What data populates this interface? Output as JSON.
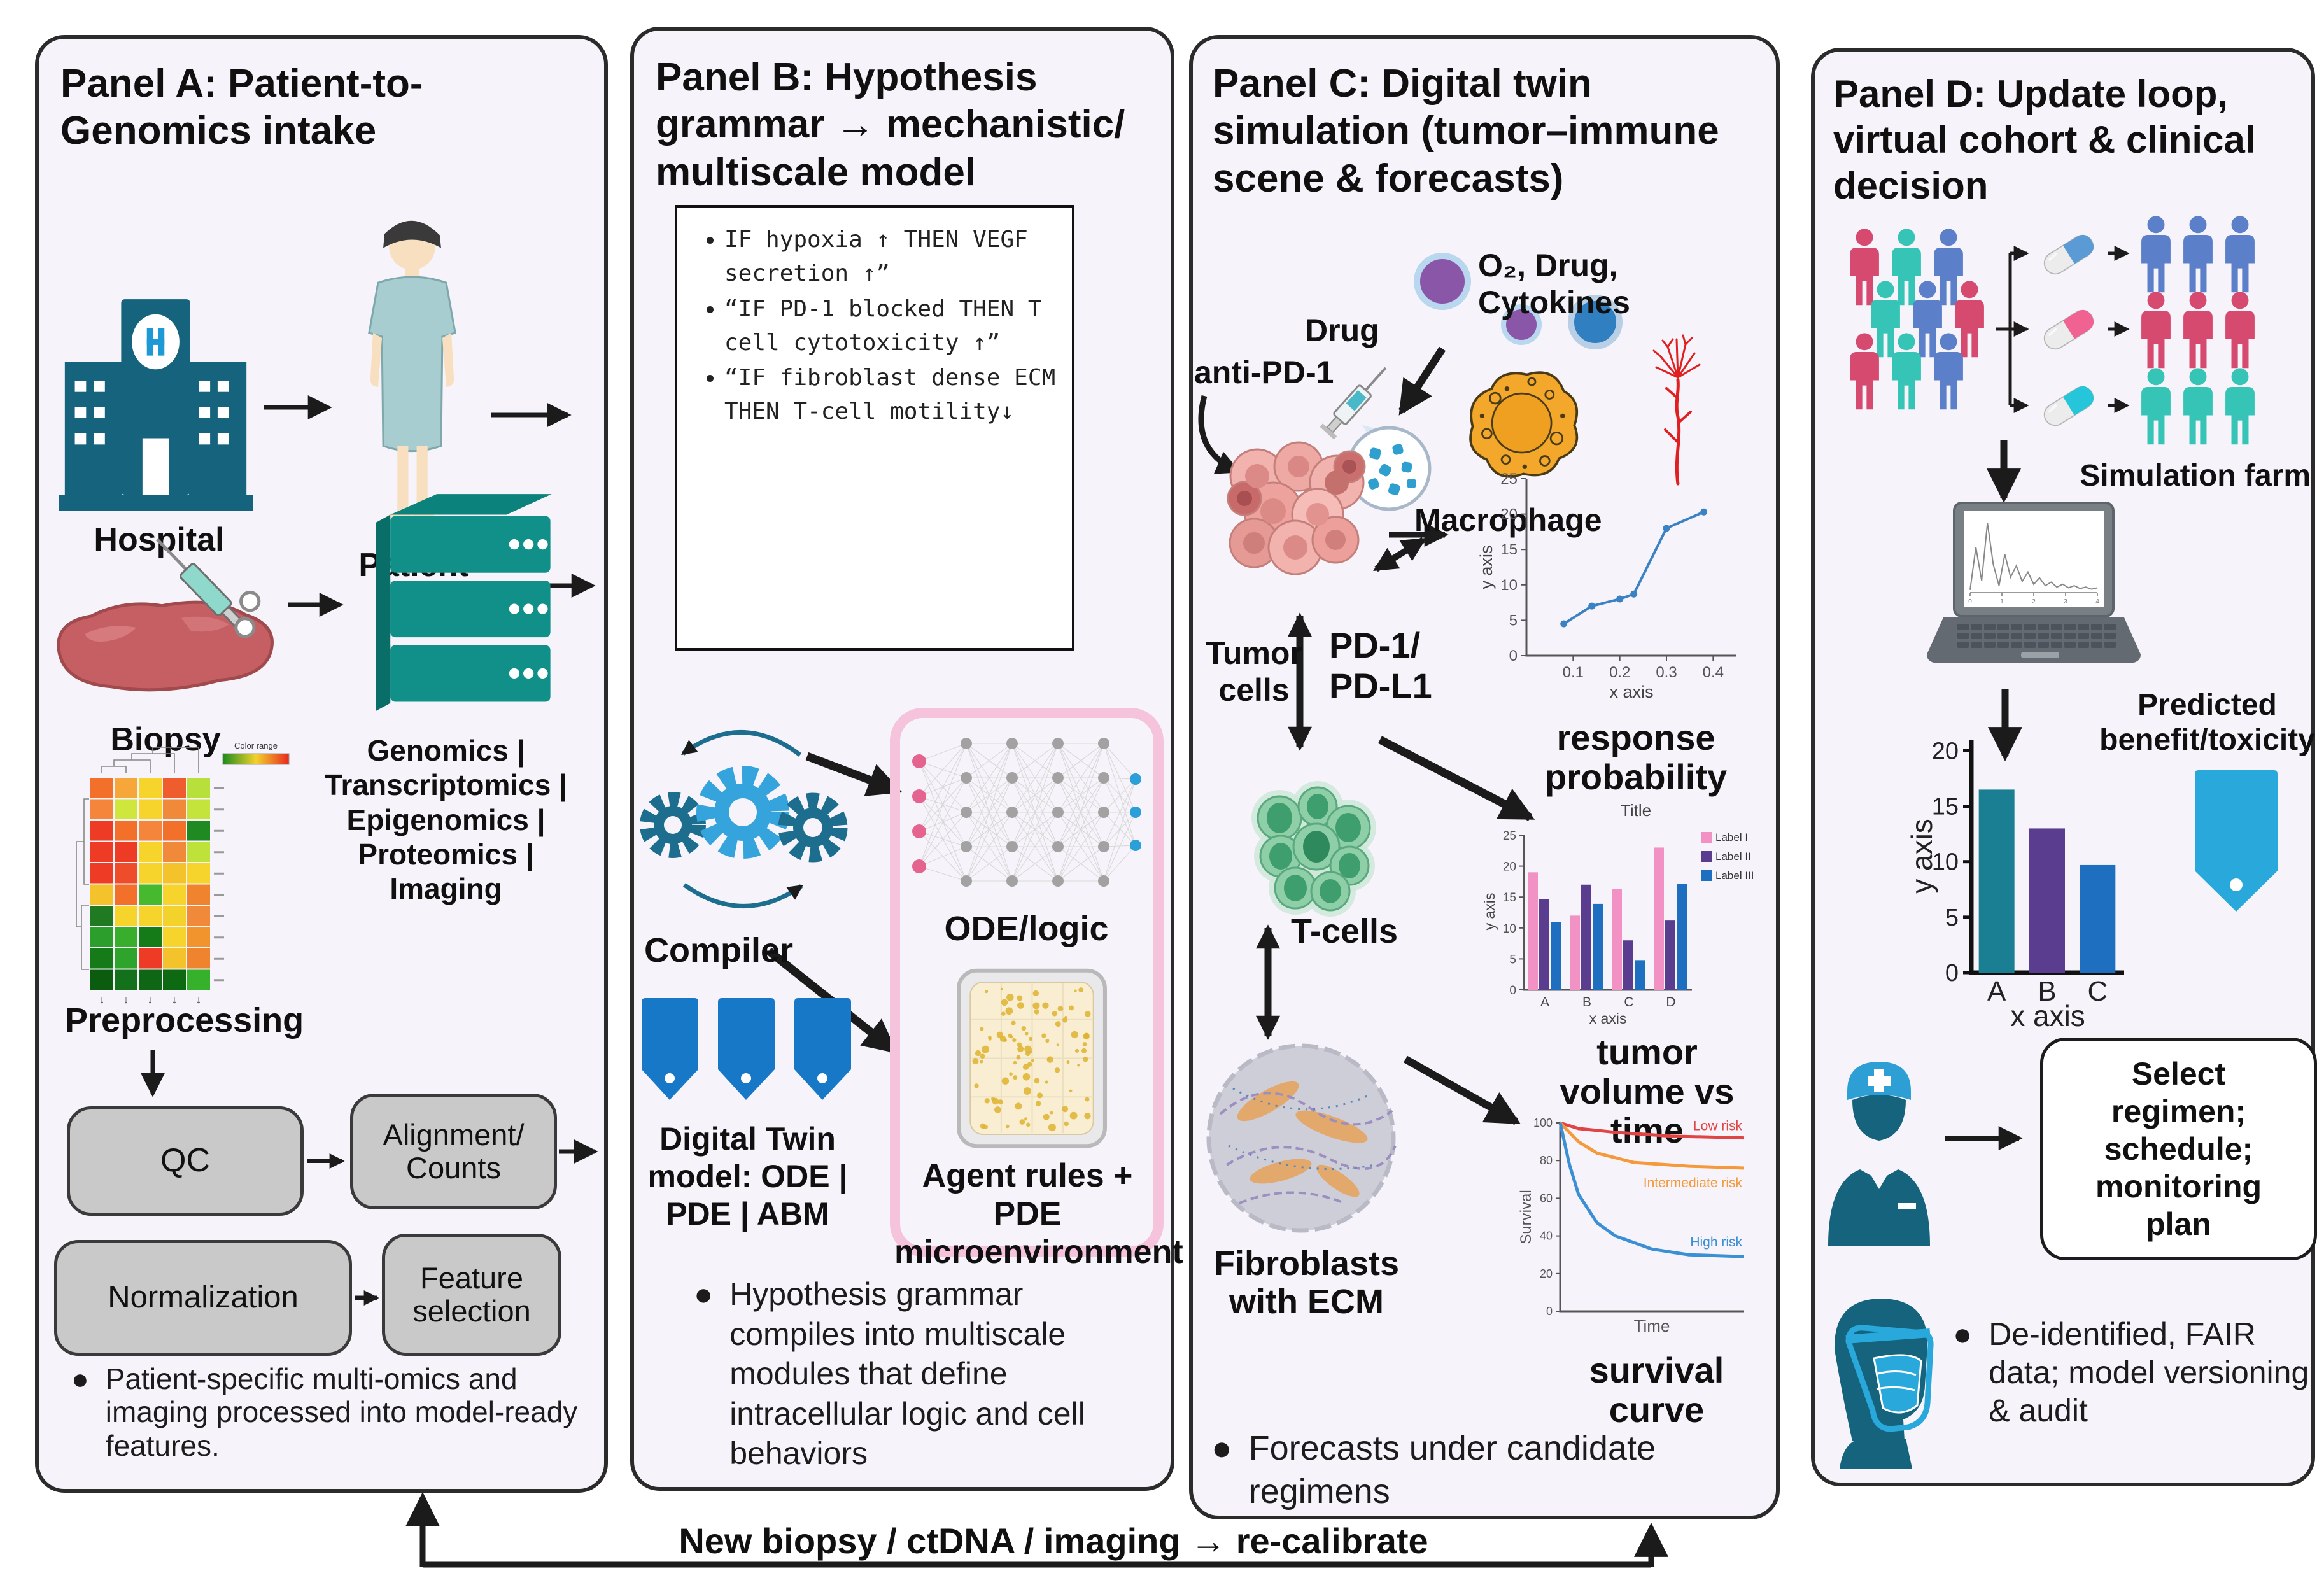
{
  "colors": {
    "panel_bg": "#f6f4fa",
    "ink": "#1b1b1b",
    "teal_dark": "#15637c",
    "teal": "#109089",
    "gray_box": "#c9c9c9",
    "gear_dark": "#1d6e8e",
    "gear_light": "#35a3dc",
    "nn_pink": "#e5638f",
    "nn_blue": "#2b9fd7",
    "pink_frame": "#f5c3dc",
    "petri_fill": "#faeed2",
    "petri_dot": "#ddb32f",
    "tag_blue": "#1878c8",
    "tumor_pink": "#efa9a5",
    "macro_orange": "#f3a82c",
    "mol_purple": "#8a56a8",
    "mol_blue": "#2f7fc1",
    "vessel_red": "#e02020",
    "tcell_green": "#8fcfa8",
    "ecm_gray": "#cdced8",
    "line_blue": "#3b82c4",
    "bar_pink": "#f291c4",
    "bar_purple": "#5b3d8f",
    "bar_blue": "#1f6fc0",
    "bar_teal": "#1a7f93",
    "low_red": "#e04545",
    "mid_orange": "#f59a3c",
    "high_blue": "#3b8fd4",
    "p_crimson": "#d64a6f",
    "p_teal": "#35c4b5",
    "p_blue": "#5b7fc9",
    "pill_blue": "#5b9bd5",
    "pill_pink": "#f06292",
    "pill_teal": "#26c6da",
    "tag_light": "#29a8dc",
    "skin": "#f7dfc0",
    "gown": "#a7cdd1",
    "tissue": "#c65f63",
    "laptop_gray": "#787f85"
  },
  "panelA": {
    "title": "Panel A: Patient-to-Genomics intake",
    "hospital": "Hospital",
    "patient": "Patient",
    "biopsy": "Biopsy",
    "server_caption": "Genomics | Transcriptomics | Epigenomics | Proteomics | Imaging",
    "preprocessing": "Preprocessing",
    "qc": "QC",
    "alignment": "Alignment/ Counts",
    "normalization": "Normalization",
    "feature": "Feature selection",
    "bullet": "Patient-specific multi-omics and imaging processed into model-ready features.",
    "heatmap": {
      "legend_label": "Color range",
      "rows": [
        [
          "#f2702a",
          "#f7a73a",
          "#f6d42c",
          "#ef5c2e",
          "#b8e03a"
        ],
        [
          "#f4853a",
          "#cfe63c",
          "#f6d42c",
          "#f08a3a",
          "#c4e43c"
        ],
        [
          "#ee3b26",
          "#f2702a",
          "#f4853a",
          "#f2702a",
          "#1f8a22"
        ],
        [
          "#ee3b26",
          "#ee3b26",
          "#f6d42c",
          "#f08a3a",
          "#bfe23a"
        ],
        [
          "#ee3b26",
          "#ee4c2a",
          "#f6d42c",
          "#f4c32c",
          "#f6d42c"
        ],
        [
          "#f4c32c",
          "#f2702a",
          "#46b92e",
          "#f6d42c",
          "#f0832e"
        ],
        [
          "#1f7a22",
          "#f6d42c",
          "#f6d42c",
          "#f4d22c",
          "#f08a3a"
        ],
        [
          "#2b9e2b",
          "#39ad2c",
          "#157a18",
          "#f6d42c",
          "#f2942e"
        ],
        [
          "#157a18",
          "#2fa42c",
          "#ee3b26",
          "#f4c32c",
          "#f0832e"
        ],
        [
          "#0c5c10",
          "#13701b",
          "#0f6614",
          "#0e6a12",
          "#35b12c"
        ]
      ]
    }
  },
  "panelB": {
    "title": "Panel B: Hypothesis grammar → mechanistic/ multiscale model",
    "rules": [
      "IF hypoxia ↑ THEN VEGF secretion ↑”",
      "“IF PD-1 blocked THEN T cell cytotoxicity ↑”",
      "“IF fibroblast dense ECM THEN T-cell motility↓"
    ],
    "compiler": "Compiler",
    "ode_logic": "ODE/logic",
    "agent": "Agent rules + PDE microenvironment",
    "twin": "Digital Twin model: ODE | PDE | ABM",
    "bullet": "Hypothesis grammar compiles into multiscale modules that define intracellular logic and cell behaviors"
  },
  "panelC": {
    "title": "Panel C: Digital twin simulation (tumor–immune scene & forecasts)",
    "molecules": "O₂, Drug, Cytokines",
    "drug": "Drug",
    "anti_pd1": "anti-PD-1",
    "macrophage": "Macrophage",
    "tumor_cells": "Tumor cells",
    "pd1": "PD-1/ PD-L1",
    "tcells": "T-cells",
    "fibroblasts": "Fibroblasts with ECM",
    "response": "response probability",
    "chart_subtitle": "Title",
    "tumor_volume": "tumor volume vs time",
    "survival": "survival curve",
    "bullet": "Forecasts under candidate regimens"
  },
  "panelD": {
    "title": "Panel D: Update loop, virtual cohort & clinical decision",
    "simulation_farm": "Simulation farm",
    "predicted": "Predicted benefit/toxicity",
    "select_box": "Select regimen; schedule; monitoring plan",
    "bullet": "De-identified, FAIR data; model versioning & audit",
    "crowd": [
      "#d64a6f",
      "#35c4b5",
      "#5b7fc9",
      "#35c4b5",
      "#5b7fc9",
      "#d64a6f",
      "#d64a6f",
      "#35c4b5",
      "#5b7fc9"
    ],
    "arms": [
      {
        "pill": "#5b9bd5",
        "people": "#5b7fc9"
      },
      {
        "pill": "#f06292",
        "people": "#d64a6f"
      },
      {
        "pill": "#26c6da",
        "people": "#35c4b5"
      }
    ]
  },
  "loop_label": "New biopsy / ctDNA / imaging → re-calibrate",
  "chart_data": [
    {
      "id": "tumor_growth",
      "type": "line",
      "x": [
        0.08,
        0.14,
        0.2,
        0.23,
        0.3,
        0.38
      ],
      "y": [
        4.5,
        7,
        8,
        8.7,
        18,
        20.3
      ],
      "xlabel": "x axis",
      "ylabel": "y axis",
      "xticks": [
        0.1,
        0.2,
        0.3,
        0.4
      ],
      "yticks": [
        0,
        5,
        10,
        15,
        20,
        25
      ],
      "xlim": [
        0,
        0.45
      ],
      "ylim": [
        0,
        25
      ],
      "color": "#3b82c4"
    },
    {
      "id": "response_probability",
      "type": "bar",
      "title": "Title",
      "categories": [
        "A",
        "B",
        "C",
        "D"
      ],
      "series": [
        {
          "name": "Label I",
          "color": "#f291c4",
          "values": [
            19,
            12,
            16.3,
            23
          ]
        },
        {
          "name": "Label II",
          "color": "#5b3d8f",
          "values": [
            14.7,
            17,
            8,
            11.2
          ]
        },
        {
          "name": "Label III",
          "color": "#1f6fc0",
          "values": [
            11,
            13.9,
            4.8,
            17.1
          ]
        }
      ],
      "xlabel": "x axis",
      "ylabel": "y axis",
      "yticks": [
        0,
        5,
        10,
        15,
        20,
        25
      ],
      "ylim": [
        0,
        25
      ],
      "legend_position": "right"
    },
    {
      "id": "survival",
      "type": "line",
      "xlabel": "Time",
      "ylabel": "Survival",
      "yticks": [
        0,
        20,
        40,
        60,
        80,
        100
      ],
      "ylim": [
        0,
        100
      ],
      "xlim": [
        0,
        10
      ],
      "series": [
        {
          "name": "Low risk",
          "color": "#e04545",
          "points": [
            [
              0,
              100
            ],
            [
              1,
              97
            ],
            [
              3,
              95
            ],
            [
              6,
              93
            ],
            [
              10,
              92
            ]
          ]
        },
        {
          "name": "Intermediate risk",
          "color": "#f59a3c",
          "points": [
            [
              0,
              100
            ],
            [
              1,
              90
            ],
            [
              2,
              84
            ],
            [
              4,
              79
            ],
            [
              7,
              77
            ],
            [
              10,
              76
            ]
          ]
        },
        {
          "name": "High risk",
          "color": "#3b8fd4",
          "points": [
            [
              0,
              100
            ],
            [
              0.5,
              78
            ],
            [
              1,
              62
            ],
            [
              2,
              47
            ],
            [
              3,
              40
            ],
            [
              5,
              33
            ],
            [
              7,
              30
            ],
            [
              10,
              29
            ]
          ]
        }
      ]
    },
    {
      "id": "predicted_benefit",
      "type": "bar",
      "categories": [
        "A",
        "B",
        "C"
      ],
      "values": [
        16.5,
        13,
        9.7
      ],
      "bar_colors": [
        "#1a7f93",
        "#5b3d8f",
        "#1f6fc0"
      ],
      "xlabel": "x axis",
      "ylabel": "y axis",
      "yticks": [
        0,
        5,
        10,
        15,
        20
      ],
      "ylim": [
        0,
        21
      ]
    },
    {
      "id": "laptop_screen",
      "type": "line",
      "values": [
        2,
        62,
        15,
        96,
        38,
        8,
        52,
        20,
        36,
        14,
        27,
        10,
        19,
        8,
        13,
        6,
        10,
        5,
        8,
        4,
        6,
        3,
        5
      ],
      "xticks": [
        0,
        1,
        2,
        3,
        4
      ]
    }
  ]
}
